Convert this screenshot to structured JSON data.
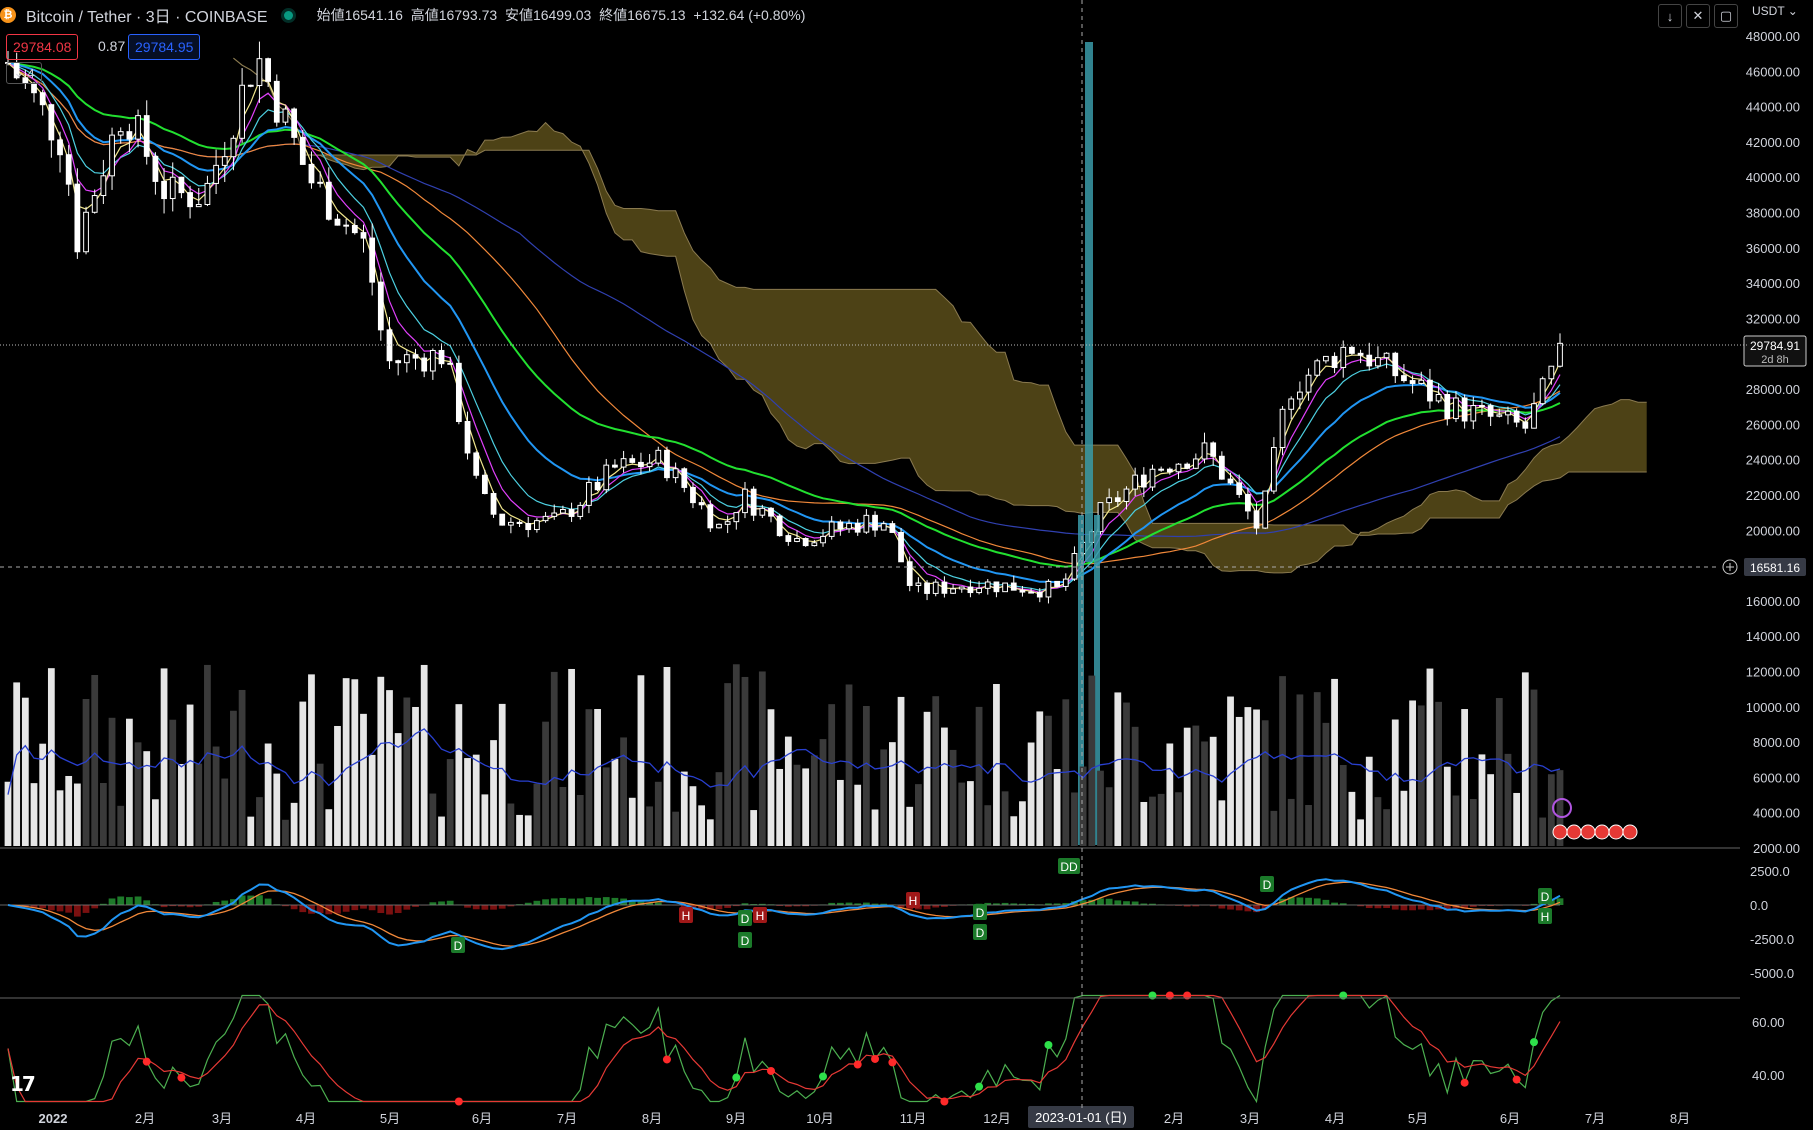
{
  "header": {
    "symbol_title": "Bitcoin / Tether · 3日 · COINBASE",
    "symbol_icon": "bitcoin-icon",
    "ohlc": {
      "open_label": "始値",
      "open": "16541.16",
      "high_label": "高値",
      "high": "16793.73",
      "low_label": "安値",
      "low": "16499.03",
      "close_label": "終値",
      "close": "16675.13",
      "change": "+132.64 (+0.80%)"
    },
    "sell_price": "29784.08",
    "spread": "0.87",
    "buy_price": "29784.95",
    "collapse_count": "4",
    "currency": "USDT"
  },
  "toolbar": {
    "icons": [
      "arrow-down-icon",
      "close-icon",
      "restore-icon"
    ]
  },
  "price_scale": {
    "ticks": [
      "48000.00",
      "46000.00",
      "44000.00",
      "42000.00",
      "40000.00",
      "38000.00",
      "36000.00",
      "34000.00",
      "32000.00",
      "30000.00",
      "28000.00",
      "26000.00",
      "24000.00",
      "22000.00",
      "20000.00",
      "18000.00",
      "16000.00",
      "14000.00",
      "12000.00",
      "10000.00",
      "8000.00",
      "6000.00",
      "4000.00",
      "2000.00"
    ],
    "last_price_label": "29784.91",
    "countdown": "2d 8h",
    "crosshair_price_label": "16581.16"
  },
  "macd_scale": {
    "ticks": [
      "2500.0",
      "0.0",
      "-2500.0",
      "-5000.0"
    ]
  },
  "rsi_scale": {
    "ticks": [
      "60.00",
      "40.00"
    ]
  },
  "time_axis": {
    "labels": [
      "2022",
      "2月",
      "3月",
      "4月",
      "5月",
      "6月",
      "7月",
      "8月",
      "9月",
      "10月",
      "11月",
      "12月",
      "2月",
      "3月",
      "4月",
      "5月",
      "6月",
      "7月",
      "8月"
    ],
    "crosshair_label": "2023-01-01 (日)"
  },
  "markers": {
    "macd_dd": "DD",
    "d_letter": "D",
    "h_letter": "H"
  },
  "colors": {
    "background": "#000000",
    "up_candle": "#ffffff",
    "down_candle": "#ffffff",
    "cloud_fill": "#5a4d1a",
    "cloud_edge": "#8a7a50",
    "ema_fast_yellow": "#f0e68c",
    "ema_magenta": "#e040fb",
    "ema_cyan": "#4dd0e1",
    "ema_blue": "#2196f3",
    "ema_green": "#22e030",
    "sma_orange": "#f0883a",
    "sma_navy": "#3040b0",
    "macd_line": "#2196f3",
    "signal_line": "#f0883a",
    "hist_pos": "#1e7a2a",
    "hist_neg": "#7a1010",
    "rsi_green": "#4caf50",
    "rsi_red": "#e53935"
  },
  "chart_data": {
    "type": "candlestick",
    "title": "Bitcoin / Tether · 3日 · COINBASE",
    "interval": "3日",
    "ylim": [
      14000,
      49000
    ],
    "y_unit": "USDT",
    "close_path_anchors": [
      {
        "t": "2022-01-01",
        "close": 46500
      },
      {
        "t": "2022-01-20",
        "close": 42000
      },
      {
        "t": "2022-01-25",
        "close": 36500
      },
      {
        "t": "2022-02-10",
        "close": 44000
      },
      {
        "t": "2022-02-25",
        "close": 39000
      },
      {
        "t": "2022-03-10",
        "close": 39000
      },
      {
        "t": "2022-03-28",
        "close": 47000
      },
      {
        "t": "2022-04-15",
        "close": 40000
      },
      {
        "t": "2022-05-05",
        "close": 36000
      },
      {
        "t": "2022-05-12",
        "close": 29500
      },
      {
        "t": "2022-06-01",
        "close": 30000
      },
      {
        "t": "2022-06-13",
        "close": 22000
      },
      {
        "t": "2022-06-20",
        "close": 20500
      },
      {
        "t": "2022-07-10",
        "close": 20500
      },
      {
        "t": "2022-07-30",
        "close": 23500
      },
      {
        "t": "2022-08-15",
        "close": 24000
      },
      {
        "t": "2022-09-05",
        "close": 20000
      },
      {
        "t": "2022-09-12",
        "close": 22000
      },
      {
        "t": "2022-10-01",
        "close": 19500
      },
      {
        "t": "2022-10-25",
        "close": 20500
      },
      {
        "t": "2022-11-01",
        "close": 20500
      },
      {
        "t": "2022-11-10",
        "close": 16500
      },
      {
        "t": "2022-12-01",
        "close": 17000
      },
      {
        "t": "2022-12-31",
        "close": 16600
      },
      {
        "t": "2023-01-14",
        "close": 21000
      },
      {
        "t": "2023-02-01",
        "close": 23500
      },
      {
        "t": "2023-02-20",
        "close": 24500
      },
      {
        "t": "2023-03-10",
        "close": 20000
      },
      {
        "t": "2023-03-20",
        "close": 28000
      },
      {
        "t": "2023-04-10",
        "close": 30500
      },
      {
        "t": "2023-04-25",
        "close": 29000
      },
      {
        "t": "2023-05-15",
        "close": 27000
      },
      {
        "t": "2023-06-10",
        "close": 25800
      },
      {
        "t": "2023-06-22",
        "close": 29784.91
      }
    ],
    "last_bar": {
      "open": 16541.16,
      "high": 16793.73,
      "low": 16499.03,
      "close": 16675.13,
      "change": 132.64,
      "change_pct": 0.8
    },
    "indicators": [
      "Ichimoku cloud",
      "EMA fast",
      "EMA medium",
      "EMA slow",
      "SMA 100",
      "SMA 200",
      "Volume",
      "MACD",
      "RSI"
    ],
    "panes": {
      "volume_ylim": [
        0,
        13000
      ],
      "macd_ylim": [
        -7000,
        4000
      ],
      "rsi_ylim": [
        30,
        70
      ]
    },
    "grid": false,
    "legend": "top-left"
  }
}
